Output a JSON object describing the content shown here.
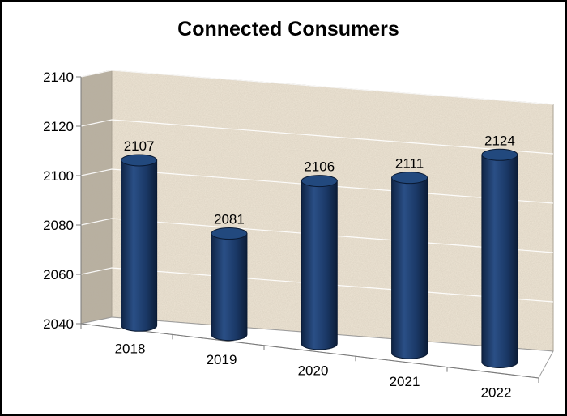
{
  "chart_data": {
    "type": "bar",
    "title": "Connected Consumers",
    "xlabel": "",
    "ylabel": "",
    "categories": [
      "2018",
      "2019",
      "2020",
      "2021",
      "2022"
    ],
    "values": [
      2107,
      2081,
      2106,
      2111,
      2124
    ],
    "data_labels": [
      "2107",
      "2081",
      "2106",
      "2111",
      "2124"
    ],
    "ylim": [
      2040,
      2140
    ],
    "y_ticks": [
      2040,
      2060,
      2080,
      2100,
      2120,
      2140
    ],
    "y_tick_labels": [
      "2040",
      "2060",
      "2080",
      "2100",
      "2120",
      "2140"
    ],
    "grid": true,
    "legend": "none",
    "style": "3d-cylinder",
    "colors": {
      "bar": "#1d3d6b",
      "bar_top": "#22497e",
      "back_wall": "#efe6d6",
      "side_wall": "#b9b1a2",
      "floor": "#ffffff",
      "grid": "#ffffff"
    }
  }
}
